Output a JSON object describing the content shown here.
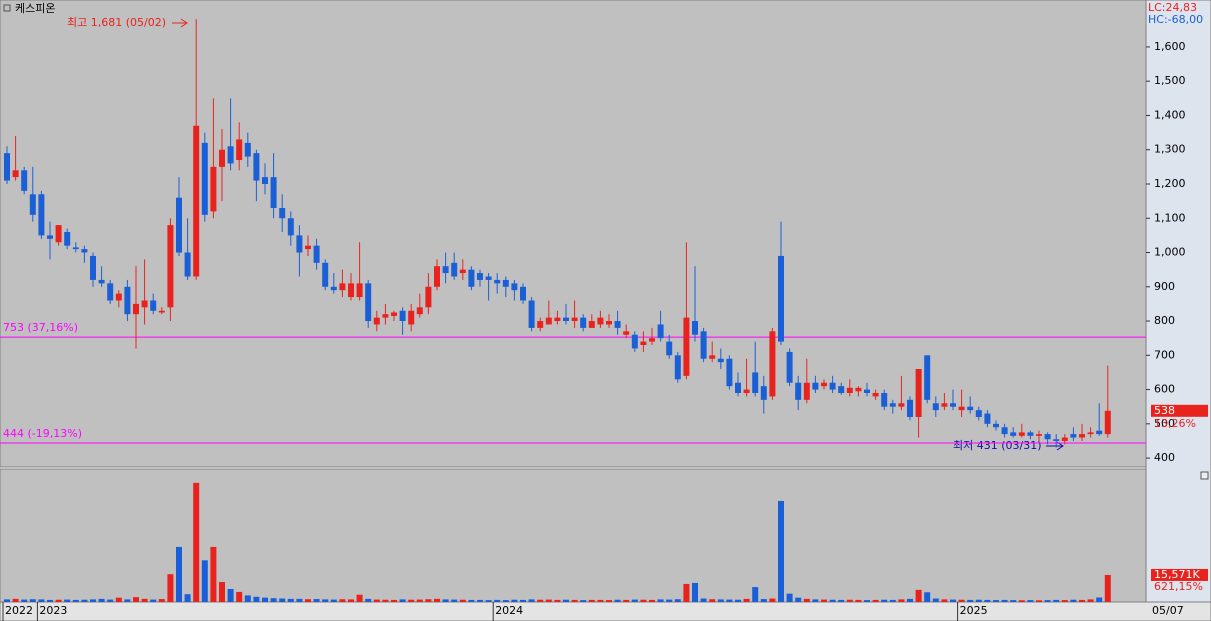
{
  "chart_data": {
    "type": "candlestick",
    "title": "케스피온",
    "lc": "LC:24,83",
    "hc": "HC:-68,00",
    "up_color": "#e8231e",
    "down_color": "#1b5fd6",
    "line_color": "#ff00ff",
    "ylim": [
      374,
      1737
    ],
    "yticks": [
      400,
      500,
      600,
      700,
      800,
      900,
      {
        "value": 1000,
        "label": "1,000"
      },
      {
        "value": 1100,
        "label": "1,100"
      },
      {
        "value": 1200,
        "label": "1,200"
      },
      {
        "value": 1300,
        "label": "1,300"
      },
      {
        "value": 1400,
        "label": "1,400"
      },
      {
        "value": 1500,
        "label": "1,500"
      },
      {
        "value": 1600,
        "label": "1,600"
      }
    ],
    "xticks": [
      {
        "value": 0,
        "label": "2022"
      },
      {
        "value": 4,
        "label": "2023"
      },
      {
        "value": 57,
        "label": "2024"
      },
      {
        "value": 111,
        "label": "2025"
      }
    ],
    "last_date": "05/07",
    "high_label": "최고 1,681 (05/02)",
    "low_label": "최저 431 (03/31)",
    "hlines": [
      {
        "value": 753,
        "label": "753 (37,16%)"
      },
      {
        "value": 444,
        "label": "444 (-19,13%)"
      }
    ],
    "last_price": 538,
    "change_label": "13,26%",
    "volume_last_label": "15,571K",
    "volume_change_label": "621,15%",
    "vlim": [
      0,
      76000
    ],
    "candles": [
      [
        1290,
        1310,
        1200,
        1210
      ],
      [
        1220,
        1340,
        1210,
        1240
      ],
      [
        1240,
        1250,
        1170,
        1180
      ],
      [
        1170,
        1250,
        1090,
        1110
      ],
      [
        1170,
        1180,
        1040,
        1050
      ],
      [
        1050,
        1090,
        980,
        1040
      ],
      [
        1030,
        1080,
        1020,
        1080
      ],
      [
        1060,
        1070,
        1010,
        1020
      ],
      [
        1015,
        1030,
        1000,
        1010
      ],
      [
        1010,
        1020,
        970,
        1000
      ],
      [
        990,
        1000,
        900,
        920
      ],
      [
        920,
        960,
        900,
        910
      ],
      [
        910,
        920,
        850,
        860
      ],
      [
        860,
        890,
        840,
        880
      ],
      [
        900,
        920,
        800,
        820
      ],
      [
        820,
        960,
        720,
        850
      ],
      [
        840,
        980,
        790,
        860
      ],
      [
        860,
        880,
        820,
        830
      ],
      [
        825,
        840,
        820,
        830
      ],
      [
        840,
        1100,
        800,
        1080
      ],
      [
        1160,
        1220,
        990,
        1000
      ],
      [
        1000,
        1100,
        920,
        930
      ],
      [
        930,
        1681,
        920,
        1370
      ],
      [
        1320,
        1350,
        1090,
        1110
      ],
      [
        1120,
        1450,
        1100,
        1250
      ],
      [
        1250,
        1360,
        1150,
        1300
      ],
      [
        1310,
        1450,
        1240,
        1260
      ],
      [
        1270,
        1380,
        1240,
        1330
      ],
      [
        1320,
        1350,
        1250,
        1280
      ],
      [
        1290,
        1300,
        1150,
        1210
      ],
      [
        1220,
        1260,
        1170,
        1200
      ],
      [
        1220,
        1290,
        1100,
        1130
      ],
      [
        1130,
        1170,
        1060,
        1100
      ],
      [
        1100,
        1120,
        1020,
        1050
      ],
      [
        1050,
        1080,
        930,
        1000
      ],
      [
        1010,
        1050,
        990,
        1020
      ],
      [
        1020,
        1040,
        950,
        970
      ],
      [
        970,
        980,
        890,
        900
      ],
      [
        900,
        940,
        880,
        890
      ],
      [
        890,
        950,
        870,
        910
      ],
      [
        870,
        940,
        860,
        910
      ],
      [
        870,
        1030,
        860,
        910
      ],
      [
        910,
        920,
        780,
        800
      ],
      [
        790,
        830,
        770,
        810
      ],
      [
        810,
        850,
        790,
        820
      ],
      [
        815,
        830,
        800,
        825
      ],
      [
        830,
        840,
        760,
        800
      ],
      [
        790,
        850,
        770,
        830
      ],
      [
        820,
        880,
        810,
        840
      ],
      [
        840,
        940,
        820,
        900
      ],
      [
        900,
        980,
        890,
        960
      ],
      [
        960,
        1000,
        910,
        940
      ],
      [
        970,
        1000,
        920,
        930
      ],
      [
        940,
        980,
        920,
        950
      ],
      [
        950,
        960,
        890,
        900
      ],
      [
        940,
        950,
        900,
        920
      ],
      [
        930,
        940,
        860,
        920
      ],
      [
        920,
        940,
        880,
        910
      ],
      [
        920,
        930,
        870,
        900
      ],
      [
        910,
        920,
        860,
        890
      ],
      [
        900,
        910,
        850,
        860
      ],
      [
        860,
        870,
        770,
        780
      ],
      [
        780,
        810,
        770,
        800
      ],
      [
        790,
        860,
        790,
        810
      ],
      [
        800,
        830,
        790,
        810
      ],
      [
        810,
        850,
        790,
        800
      ],
      [
        800,
        860,
        780,
        810
      ],
      [
        810,
        820,
        770,
        780
      ],
      [
        780,
        820,
        780,
        800
      ],
      [
        790,
        830,
        780,
        810
      ],
      [
        790,
        820,
        780,
        800
      ],
      [
        800,
        830,
        760,
        780
      ],
      [
        760,
        790,
        750,
        770
      ],
      [
        760,
        770,
        710,
        720
      ],
      [
        730,
        770,
        710,
        740
      ],
      [
        740,
        780,
        730,
        750
      ],
      [
        790,
        830,
        740,
        750
      ],
      [
        740,
        760,
        690,
        700
      ],
      [
        700,
        710,
        620,
        630
      ],
      [
        640,
        1030,
        630,
        810
      ],
      [
        800,
        960,
        740,
        760
      ],
      [
        770,
        780,
        680,
        690
      ],
      [
        690,
        740,
        680,
        700
      ],
      [
        690,
        720,
        660,
        680
      ],
      [
        690,
        700,
        600,
        610
      ],
      [
        620,
        650,
        580,
        590
      ],
      [
        590,
        690,
        580,
        600
      ],
      [
        650,
        740,
        580,
        590
      ],
      [
        610,
        640,
        530,
        570
      ],
      [
        580,
        780,
        570,
        770
      ],
      [
        990,
        1090,
        730,
        740
      ],
      [
        710,
        720,
        610,
        620
      ],
      [
        620,
        640,
        540,
        570
      ],
      [
        570,
        690,
        560,
        620
      ],
      [
        620,
        640,
        590,
        600
      ],
      [
        610,
        630,
        600,
        620
      ],
      [
        620,
        640,
        590,
        600
      ],
      [
        610,
        620,
        585,
        590
      ],
      [
        590,
        630,
        580,
        605
      ],
      [
        595,
        610,
        580,
        605
      ],
      [
        600,
        620,
        580,
        590
      ],
      [
        580,
        600,
        570,
        590
      ],
      [
        590,
        600,
        540,
        550
      ],
      [
        560,
        570,
        530,
        550
      ],
      [
        550,
        640,
        540,
        560
      ],
      [
        570,
        580,
        510,
        520
      ],
      [
        520,
        660,
        460,
        660
      ],
      [
        700,
        700,
        560,
        570
      ],
      [
        560,
        580,
        520,
        540
      ],
      [
        550,
        590,
        540,
        560
      ],
      [
        560,
        600,
        540,
        550
      ],
      [
        540,
        600,
        520,
        550
      ],
      [
        550,
        580,
        530,
        540
      ],
      [
        540,
        550,
        510,
        520
      ],
      [
        530,
        540,
        490,
        500
      ],
      [
        500,
        510,
        480,
        490
      ],
      [
        490,
        500,
        460,
        470
      ],
      [
        475,
        490,
        460,
        465
      ],
      [
        465,
        500,
        460,
        475
      ],
      [
        475,
        480,
        455,
        465
      ],
      [
        465,
        480,
        450,
        470
      ],
      [
        470,
        475,
        440,
        455
      ],
      [
        455,
        470,
        431,
        450
      ],
      [
        450,
        470,
        440,
        460
      ],
      [
        470,
        490,
        450,
        460
      ],
      [
        460,
        500,
        450,
        470
      ],
      [
        470,
        490,
        460,
        475
      ],
      [
        480,
        560,
        465,
        470
      ],
      [
        470,
        670,
        460,
        538
      ]
    ],
    "volume": [
      1500,
      1800,
      1400,
      1600,
      1500,
      1200,
      1300,
      1400,
      1200,
      1300,
      1500,
      1800,
      1400,
      2500,
      1500,
      2800,
      1800,
      1400,
      1700,
      16000,
      31700,
      4500,
      68600,
      24000,
      31700,
      11500,
      7500,
      5800,
      3800,
      3000,
      2500,
      2200,
      2000,
      1800,
      1800,
      1600,
      1700,
      1500,
      1400,
      1600,
      1500,
      4200,
      1800,
      1400,
      1300,
      1200,
      1500,
      1300,
      1400,
      1600,
      1800,
      1500,
      1400,
      1300,
      1200,
      1200,
      1100,
      1200,
      1100,
      1300,
      1200,
      1500,
      1300,
      1400,
      1200,
      1300,
      1200,
      1100,
      1200,
      1200,
      1100,
      1300,
      1200,
      1400,
      1300,
      1200,
      1500,
      1400,
      1600,
      10400,
      11000,
      2000,
      1600,
      1500,
      1400,
      1300,
      1800,
      8600,
      1700,
      2000,
      58200,
      4800,
      2500,
      1800,
      1500,
      1400,
      1300,
      1200,
      1300,
      1200,
      1100,
      1200,
      1300,
      1200,
      1500,
      1800,
      7000,
      5600,
      2000,
      1500,
      1400,
      1300,
      1200,
      1300,
      1200,
      1100,
      1200,
      1100,
      1000,
      1100,
      1000,
      1100,
      1200,
      1100,
      1300,
      1200,
      1500,
      2600,
      15571
    ]
  }
}
